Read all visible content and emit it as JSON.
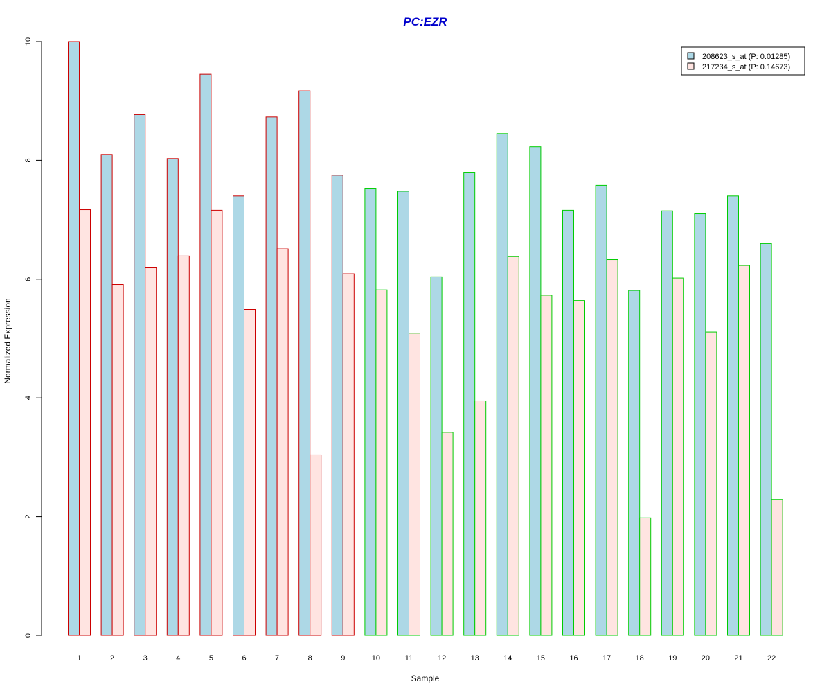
{
  "chart_data": {
    "type": "bar",
    "title": "PC:EZR",
    "xlabel": "Sample",
    "ylabel": "Normalized Expression",
    "ylim": [
      0,
      10
    ],
    "yticks": [
      0,
      2,
      4,
      6,
      8,
      10
    ],
    "grid": false,
    "legend_position": "top-right",
    "categories": [
      "1",
      "2",
      "3",
      "4",
      "5",
      "6",
      "7",
      "8",
      "9",
      "10",
      "11",
      "12",
      "13",
      "14",
      "15",
      "16",
      "17",
      "18",
      "19",
      "20",
      "21",
      "22"
    ],
    "group_border_colors": [
      "#cc0000",
      "#cc0000",
      "#cc0000",
      "#cc0000",
      "#cc0000",
      "#cc0000",
      "#cc0000",
      "#cc0000",
      "#cc0000",
      "#00cc00",
      "#00cc00",
      "#00cc00",
      "#00cc00",
      "#00cc00",
      "#00cc00",
      "#00cc00",
      "#00cc00",
      "#00cc00",
      "#00cc00",
      "#00cc00",
      "#00cc00",
      "#00cc00"
    ],
    "series": [
      {
        "name": "208623_s_at (P: 0.01285)",
        "fill": "#add8e6",
        "values": [
          10.0,
          8.1,
          8.77,
          8.03,
          9.45,
          7.4,
          8.73,
          9.17,
          7.75,
          7.52,
          7.48,
          6.04,
          7.8,
          8.45,
          8.23,
          7.16,
          7.58,
          5.81,
          7.15,
          7.1,
          7.4,
          6.6
        ]
      },
      {
        "name": "217234_s_at (P: 0.14673)",
        "fill": "#ffe4e1",
        "values": [
          7.17,
          5.91,
          6.19,
          6.39,
          7.16,
          5.49,
          6.51,
          3.04,
          6.09,
          5.82,
          5.09,
          3.42,
          3.95,
          6.38,
          5.73,
          5.64,
          6.33,
          1.98,
          6.02,
          5.11,
          6.23,
          2.29
        ]
      }
    ]
  }
}
